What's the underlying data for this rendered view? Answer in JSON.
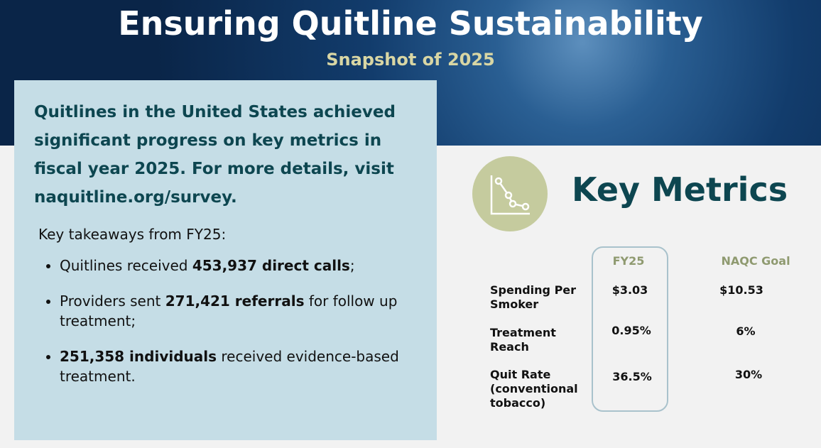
{
  "header": {
    "title": "Ensuring Quitline Sustainability",
    "subtitle": "Snapshot of 2025"
  },
  "summary": {
    "intro": "Quitlines in the United States achieved significant progress on key metrics in fiscal year 2025. For more details, visit naquitline.org/survey.",
    "takeaways_heading": "Key takeaways from FY25:",
    "bullets": [
      {
        "before": "Quitlines received ",
        "bold": "453,937 direct calls",
        "after": ";"
      },
      {
        "before": "Providers sent ",
        "bold": "271,421 referrals",
        "after": " for follow up treatment;"
      },
      {
        "bold": "251,358 individuals",
        "after": " received evidence-based treatment."
      }
    ]
  },
  "metrics": {
    "title": "Key Metrics",
    "columns": [
      "FY25",
      "NAQC Goal"
    ],
    "rows": [
      {
        "label": "Spending Per Smoker",
        "fy25": "$3.03",
        "goal": "$10.53"
      },
      {
        "label": "Treatment Reach",
        "fy25": "0.95%",
        "goal": "6%"
      },
      {
        "label": "Quit Rate (conventional tobacco)",
        "fy25": "36.5%",
        "goal": "30%"
      }
    ]
  }
}
